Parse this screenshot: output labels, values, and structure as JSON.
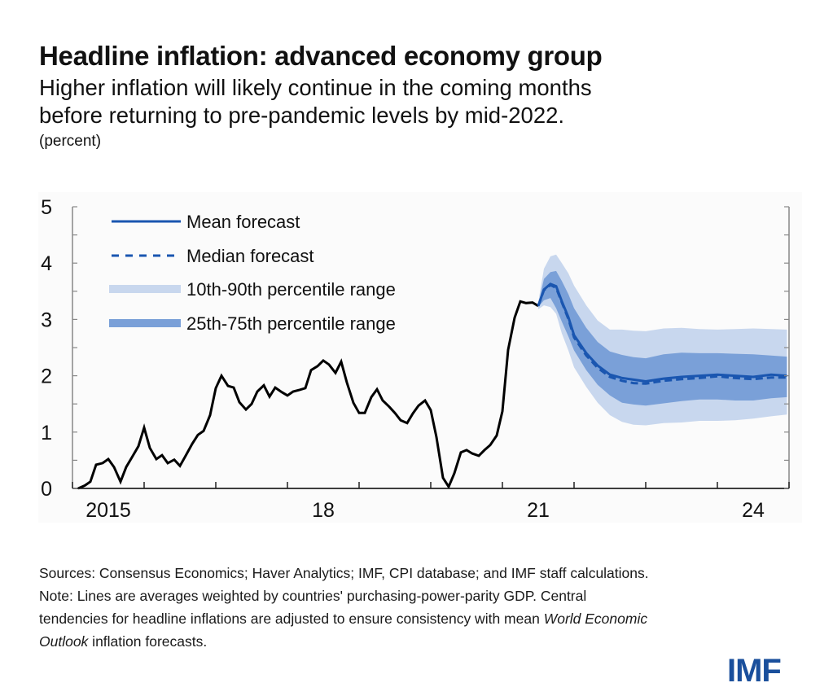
{
  "header": {
    "title": "Headline inflation: advanced economy group",
    "subtitle_line1": "Higher inflation will likely continue in the coming months",
    "subtitle_line2": "before returning to pre-pandemic levels by mid-2022.",
    "units": "(percent)"
  },
  "chart_data": {
    "type": "line",
    "title": "Headline inflation: advanced economy group",
    "ylabel": "percent",
    "xlabel": "",
    "ylim": [
      0,
      5
    ],
    "xlim": [
      2015.0,
      2025.0
    ],
    "yticks": [
      0,
      1,
      2,
      3,
      4,
      5
    ],
    "yminor_ticks": [
      0.5,
      1.5,
      2.5,
      3.5,
      4.5
    ],
    "xticks_year_boundaries": [
      2015,
      2016,
      2017,
      2018,
      2019,
      2020,
      2021,
      2022,
      2023,
      2024,
      2025
    ],
    "xtick_labels": [
      {
        "label": "2015",
        "at": 2015.5
      },
      {
        "label": "18",
        "at": 2018.5
      },
      {
        "label": "21",
        "at": 2021.5
      },
      {
        "label": "24",
        "at": 2024.5
      }
    ],
    "grid": false,
    "legend_position": "top-left",
    "legend": [
      {
        "name": "Mean forecast",
        "style": "solid-line"
      },
      {
        "name": "Median forecast",
        "style": "dashed-line"
      },
      {
        "name": "10th-90th percentile range",
        "style": "light-band"
      },
      {
        "name": "25th-75th percentile range",
        "style": "dark-band"
      }
    ],
    "colors": {
      "history": "#000000",
      "mean": "#1a56b0",
      "median": "#1a56b0",
      "band_10_90": "#c8d7ee",
      "band_25_75": "#7aa0d8",
      "axis": "#888888"
    },
    "history": {
      "name": "Actual headline inflation",
      "x": [
        2015.08,
        2015.17,
        2015.25,
        2015.33,
        2015.42,
        2015.5,
        2015.58,
        2015.67,
        2015.75,
        2015.83,
        2015.92,
        2016.0,
        2016.08,
        2016.17,
        2016.25,
        2016.33,
        2016.42,
        2016.5,
        2016.58,
        2016.67,
        2016.75,
        2016.83,
        2016.92,
        2017.0,
        2017.08,
        2017.17,
        2017.25,
        2017.33,
        2017.42,
        2017.5,
        2017.58,
        2017.67,
        2017.75,
        2017.83,
        2017.92,
        2018.0,
        2018.08,
        2018.17,
        2018.25,
        2018.33,
        2018.42,
        2018.5,
        2018.58,
        2018.67,
        2018.75,
        2018.83,
        2018.92,
        2019.0,
        2019.08,
        2019.17,
        2019.25,
        2019.33,
        2019.42,
        2019.5,
        2019.58,
        2019.67,
        2019.75,
        2019.83,
        2019.92,
        2020.0,
        2020.08,
        2020.17,
        2020.25,
        2020.33,
        2020.42,
        2020.5,
        2020.58,
        2020.67,
        2020.75,
        2020.83,
        2020.92,
        2021.0,
        2021.08,
        2021.17,
        2021.25,
        2021.33,
        2021.42,
        2021.5
      ],
      "y": [
        0.0,
        0.05,
        0.12,
        0.42,
        0.45,
        0.52,
        0.38,
        0.12,
        0.38,
        0.55,
        0.75,
        1.08,
        0.72,
        0.52,
        0.59,
        0.45,
        0.51,
        0.4,
        0.58,
        0.79,
        0.95,
        1.02,
        1.3,
        1.78,
        2.0,
        1.82,
        1.79,
        1.53,
        1.4,
        1.5,
        1.72,
        1.83,
        1.63,
        1.79,
        1.71,
        1.65,
        1.72,
        1.75,
        1.78,
        2.1,
        2.17,
        2.27,
        2.2,
        2.05,
        2.25,
        1.88,
        1.52,
        1.34,
        1.34,
        1.62,
        1.76,
        1.56,
        1.45,
        1.34,
        1.21,
        1.16,
        1.33,
        1.47,
        1.56,
        1.39,
        0.91,
        0.19,
        0.03,
        0.27,
        0.64,
        0.68,
        0.62,
        0.58,
        0.68,
        0.77,
        0.94,
        1.37,
        2.46,
        3.03,
        3.32,
        3.29,
        3.3,
        3.24
      ]
    },
    "forecast": {
      "x": [
        2021.5,
        2021.58,
        2021.67,
        2021.75,
        2021.83,
        2021.92,
        2022.0,
        2022.17,
        2022.33,
        2022.5,
        2022.67,
        2022.83,
        2023.0,
        2023.25,
        2023.5,
        2023.75,
        2024.0,
        2024.25,
        2024.5,
        2024.75,
        2024.97
      ],
      "mean": [
        3.24,
        3.53,
        3.63,
        3.59,
        3.32,
        3.04,
        2.72,
        2.4,
        2.18,
        2.02,
        1.96,
        1.93,
        1.9,
        1.95,
        1.98,
        2.0,
        2.02,
        2.0,
        1.98,
        2.02,
        2.0
      ],
      "median": [
        3.24,
        3.52,
        3.61,
        3.56,
        3.3,
        3.01,
        2.68,
        2.36,
        2.14,
        1.98,
        1.91,
        1.87,
        1.86,
        1.91,
        1.94,
        1.96,
        1.99,
        1.96,
        1.94,
        1.97,
        1.97
      ],
      "p10": [
        3.18,
        3.25,
        3.22,
        3.1,
        2.75,
        2.45,
        2.15,
        1.8,
        1.52,
        1.3,
        1.18,
        1.13,
        1.12,
        1.16,
        1.17,
        1.2,
        1.2,
        1.21,
        1.24,
        1.28,
        1.31
      ],
      "p25": [
        3.22,
        3.34,
        3.38,
        3.2,
        2.96,
        2.7,
        2.45,
        2.1,
        1.84,
        1.65,
        1.52,
        1.49,
        1.47,
        1.51,
        1.55,
        1.58,
        1.58,
        1.56,
        1.56,
        1.6,
        1.62
      ],
      "p75": [
        3.26,
        3.72,
        3.84,
        3.86,
        3.68,
        3.45,
        3.2,
        2.85,
        2.6,
        2.43,
        2.37,
        2.33,
        2.31,
        2.38,
        2.41,
        2.4,
        2.4,
        2.39,
        2.38,
        2.36,
        2.34
      ],
      "p90": [
        3.3,
        3.9,
        4.12,
        4.15,
        4.0,
        3.82,
        3.6,
        3.25,
        2.98,
        2.82,
        2.82,
        2.8,
        2.79,
        2.84,
        2.85,
        2.83,
        2.82,
        2.83,
        2.84,
        2.83,
        2.82
      ]
    }
  },
  "footer": {
    "sources": "Sources: Consensus Economics; Haver Analytics; IMF, CPI database; and IMF staff calculations.",
    "note_line1": "Note: Lines are averages weighted by countries' purchasing-power-parity GDP. Central",
    "note_line2_a": "tendencies for headline inflations are adjusted to ensure consistency with mean ",
    "note_line2_b": "World Economic",
    "note_line3_a": "Outlook",
    "note_line3_b": " inflation forecasts.",
    "logo": "IMF"
  }
}
